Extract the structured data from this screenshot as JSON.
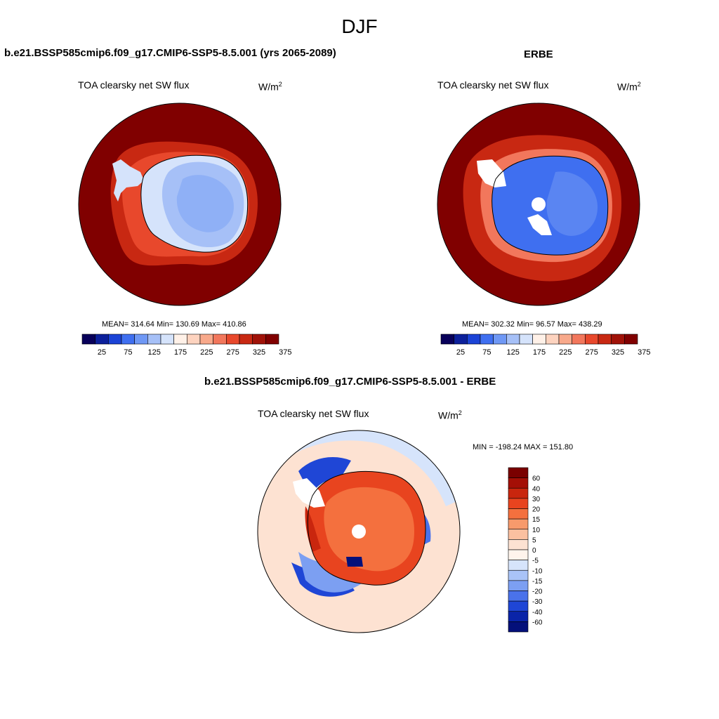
{
  "figure": {
    "title": "DJF"
  },
  "panels": [
    {
      "title": "b.e21.BSSP585cmip6.f09_g17.CMIP6-SSP5-8.5.001 (yrs 2065-2089)",
      "subtitle": "TOA clearsky net SW flux",
      "units": "W/m",
      "units_sup": "2",
      "stats": "MEAN= 314.64  Min= 130.69  Max= 410.86",
      "colorbar": {
        "labels": [
          "25",
          "75",
          "125",
          "175",
          "225",
          "275",
          "325",
          "375"
        ],
        "colors": [
          "#08005a",
          "#0c209b",
          "#1b43d6",
          "#3f6ff0",
          "#6f98f5",
          "#a6c0f7",
          "#d5e3fb",
          "#fff1e8",
          "#fdd3bf",
          "#f8a98b",
          "#f2775c",
          "#e8482c",
          "#c82812",
          "#a01208",
          "#800000"
        ]
      }
    },
    {
      "title": "ERBE",
      "subtitle": "TOA clearsky net SW flux",
      "units": "W/m",
      "units_sup": "2",
      "stats": "MEAN= 302.32  Min=  96.57  Max= 438.29",
      "colorbar": {
        "labels": [
          "25",
          "75",
          "125",
          "175",
          "225",
          "275",
          "325",
          "375"
        ],
        "colors": [
          "#08005a",
          "#0c209b",
          "#1b43d6",
          "#3f6ff0",
          "#6f98f5",
          "#a6c0f7",
          "#d5e3fb",
          "#fff1e8",
          "#fdd3bf",
          "#f8a98b",
          "#f2775c",
          "#e8482c",
          "#c82812",
          "#a01208",
          "#800000"
        ]
      }
    },
    {
      "title": "b.e21.BSSP585cmip6.f09_g17.CMIP6-SSP5-8.5.001 - ERBE",
      "subtitle": "TOA clearsky net SW flux",
      "units": "W/m",
      "units_sup": "2",
      "stats": "MIN = -198.24 MAX = 151.80",
      "colorbar": {
        "labels": [
          "60",
          "40",
          "30",
          "20",
          "15",
          "10",
          "5",
          "0",
          "-5",
          "-10",
          "-15",
          "-20",
          "-30",
          "-40",
          "-60"
        ],
        "colors": [
          "#7a0000",
          "#a40f06",
          "#c9260e",
          "#e8441f",
          "#f4703e",
          "#f79a6c",
          "#fbc0a0",
          "#fde2d2",
          "#fff4ec",
          "#d6e4fb",
          "#a9c3f7",
          "#7c9ff2",
          "#4a72ea",
          "#1f46d6",
          "#0a24a8",
          "#04107a"
        ]
      }
    }
  ]
}
